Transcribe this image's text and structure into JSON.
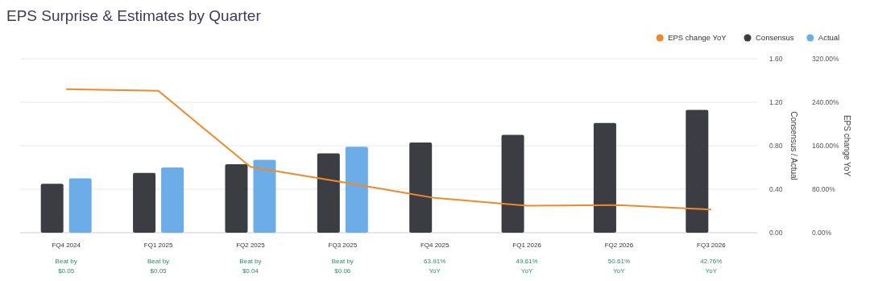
{
  "chart_data": {
    "type": "bar",
    "title": "EPS Surprise & Estimates by Quarter",
    "ylabel": "Consensus / Actual",
    "y2label": "EPS change YoY",
    "categories": [
      "FQ4 2024",
      "FQ1 2025",
      "FQ2 2025",
      "FQ3 2025",
      "FQ4 2025",
      "FQ1 2026",
      "FQ2 2026",
      "FQ3 2026"
    ],
    "series": [
      {
        "name": "EPS change YoY",
        "type": "line",
        "axis": "y2",
        "color": "#f0892a",
        "values": [
          264,
          261,
          121,
          93,
          63.91,
          49.61,
          50.61,
          42.76
        ]
      },
      {
        "name": "Consensus",
        "color": "#3c3d42",
        "values": [
          0.45,
          0.55,
          0.63,
          0.73,
          0.83,
          0.9,
          1.01,
          1.13
        ]
      },
      {
        "name": "Actual",
        "color": "#6cade8",
        "values": [
          0.5,
          0.6,
          0.67,
          0.79,
          null,
          null,
          null,
          null
        ]
      }
    ],
    "ylim": [
      0,
      1.6
    ],
    "yticks": [
      {
        "value": 0,
        "label": "0.00"
      },
      {
        "value": 0.4,
        "label": "0.40"
      },
      {
        "value": 0.8,
        "label": "0.80"
      },
      {
        "value": 1.2,
        "label": "1.20"
      },
      {
        "value": 1.6,
        "label": "1.60"
      }
    ],
    "y2lim": [
      0,
      320
    ],
    "y2ticks": [
      {
        "value": 0,
        "label": "0.00%"
      },
      {
        "value": 80,
        "label": "80.00%"
      },
      {
        "value": 160,
        "label": "160.00%"
      },
      {
        "value": 240,
        "label": "240.00%"
      },
      {
        "value": 320,
        "label": "320.00%"
      }
    ],
    "grid": "y",
    "legend": "top right",
    "marker": "none",
    "line_style": "solid",
    "annotations": [
      "Beat by $0.05",
      "Beat by $0.05",
      "Beat by $0.04",
      "Beat by $0.06",
      "63.91% YoY",
      "49.61% YoY",
      "50.61% YoY",
      "42.76% YoY"
    ]
  }
}
